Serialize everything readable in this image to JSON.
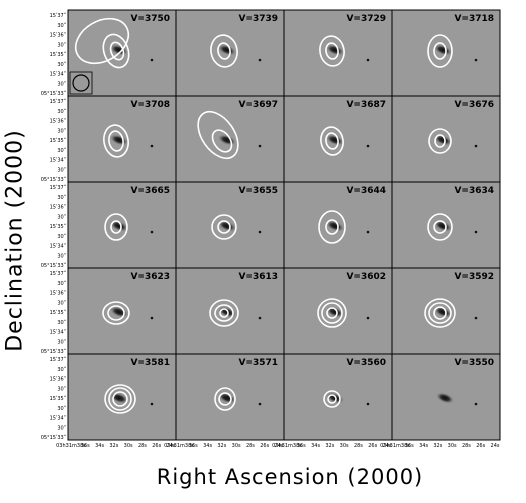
{
  "figure": {
    "xlabel": "Right Ascension (2000)",
    "ylabel": "Declination (2000)",
    "ra_ticks": [
      "03h31m38s",
      "36s",
      "34s",
      "32s",
      "30s",
      "28s",
      "26s",
      "24s"
    ],
    "dec_ticks": [
      "15ʹ37ʺ",
      "30ʺ",
      "15ʹ36ʺ",
      "30ʺ",
      "15ʹ35ʺ",
      "30ʺ",
      "15ʹ34ʺ",
      "30ʺ",
      "05°15ʹ33ʺ"
    ]
  },
  "panels": [
    {
      "label": "V=3750"
    },
    {
      "label": "V=3739"
    },
    {
      "label": "V=3729"
    },
    {
      "label": "V=3718"
    },
    {
      "label": "V=3708"
    },
    {
      "label": "V=3697"
    },
    {
      "label": "V=3687"
    },
    {
      "label": "V=3676"
    },
    {
      "label": "V=3665"
    },
    {
      "label": "V=3655"
    },
    {
      "label": "V=3644"
    },
    {
      "label": "V=3634"
    },
    {
      "label": "V=3623"
    },
    {
      "label": "V=3613"
    },
    {
      "label": "V=3602"
    },
    {
      "label": "V=3592"
    },
    {
      "label": "V=3581"
    },
    {
      "label": "V=3571"
    },
    {
      "label": "V=3560"
    },
    {
      "label": "V=3550"
    }
  ],
  "colors": {
    "background": "#9a9a9a",
    "contour": "#ffffff",
    "galaxy_core": "#0c0c0c",
    "frame": "#000000"
  }
}
